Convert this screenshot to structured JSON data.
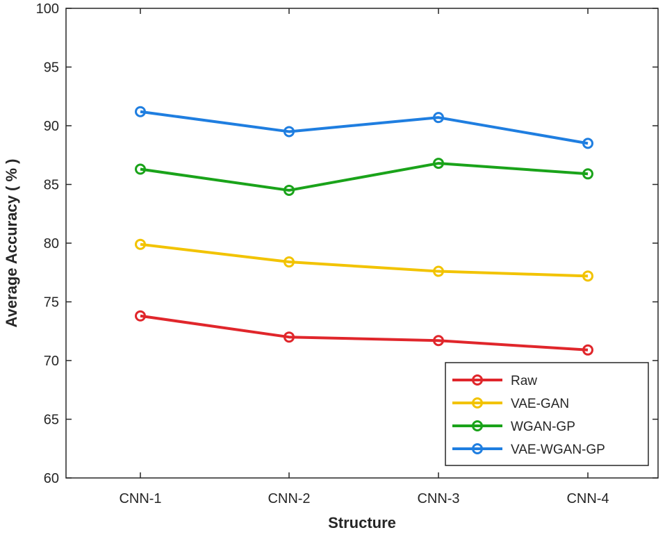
{
  "chart_data": {
    "type": "line",
    "title": "",
    "xlabel": "Structure",
    "ylabel": "Average Accuracy ( % )",
    "categories": [
      "CNN-1",
      "CNN-2",
      "CNN-3",
      "CNN-4"
    ],
    "ylim": [
      60,
      100
    ],
    "yticks": [
      60,
      65,
      70,
      75,
      80,
      85,
      90,
      95,
      100
    ],
    "grid": false,
    "legend_position": "bottom-right",
    "series": [
      {
        "name": "Raw",
        "color": "#e0262b",
        "marker": "circle",
        "values": [
          73.8,
          72.0,
          71.7,
          70.9
        ]
      },
      {
        "name": "VAE-GAN",
        "color": "#f2c300",
        "marker": "circle",
        "values": [
          79.9,
          78.4,
          77.6,
          77.2
        ]
      },
      {
        "name": "WGAN-GP",
        "color": "#1aa31a",
        "marker": "circle",
        "values": [
          86.3,
          84.5,
          86.8,
          85.9
        ]
      },
      {
        "name": "VAE-WGAN-GP",
        "color": "#1f7ee0",
        "marker": "circle",
        "values": [
          91.2,
          89.5,
          90.7,
          88.5
        ]
      }
    ]
  }
}
